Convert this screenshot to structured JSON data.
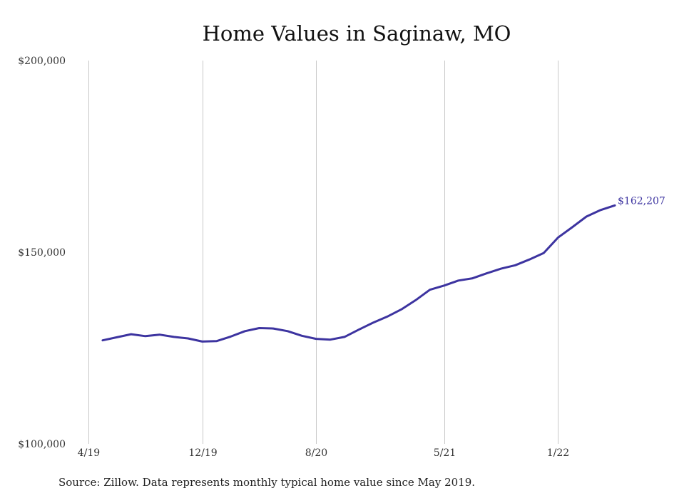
{
  "chart_data": {
    "type": "line",
    "title": "Home Values in Saginaw, MO",
    "xlabel": "",
    "ylabel": "",
    "ylim": [
      100000,
      200000
    ],
    "y_ticks": [
      100000,
      150000,
      200000
    ],
    "y_tick_labels": [
      "$100,000",
      "$150,000",
      "$200,000"
    ],
    "x_tick_labels": [
      "4/19",
      "12/19",
      "8/20",
      "5/21",
      "1/22"
    ],
    "x_ticks": [
      "2019-04",
      "2019-12",
      "2020-08",
      "2021-05",
      "2022-01"
    ],
    "grid": "vertical",
    "line_color": "#3d34a0",
    "end_label": "$162,207",
    "series": [
      {
        "x": [
          "2019-05",
          "2019-06",
          "2019-07",
          "2019-08",
          "2019-09",
          "2019-10",
          "2019-11",
          "2019-12",
          "2020-01",
          "2020-02",
          "2020-03",
          "2020-04",
          "2020-05",
          "2020-06",
          "2020-07",
          "2020-08",
          "2020-09",
          "2020-10",
          "2020-11",
          "2020-12",
          "2021-01",
          "2021-02",
          "2021-03",
          "2021-04",
          "2021-05",
          "2021-06",
          "2021-07",
          "2021-08",
          "2021-09",
          "2021-10",
          "2021-11",
          "2021-12",
          "2022-01",
          "2022-02",
          "2022-03",
          "2022-04",
          "2022-05"
        ],
        "values": [
          127000,
          127800,
          128600,
          128100,
          128500,
          127900,
          127500,
          126700,
          126800,
          128000,
          129400,
          130200,
          130100,
          129400,
          128200,
          127400,
          127200,
          127900,
          129800,
          131600,
          133200,
          135100,
          137500,
          140200,
          141300,
          142600,
          143200,
          144500,
          145700,
          146600,
          148100,
          149800,
          153800,
          156500,
          159300,
          161000,
          162207
        ]
      }
    ]
  },
  "source_note": "Source: Zillow. Data represents monthly typical home value since May 2019."
}
